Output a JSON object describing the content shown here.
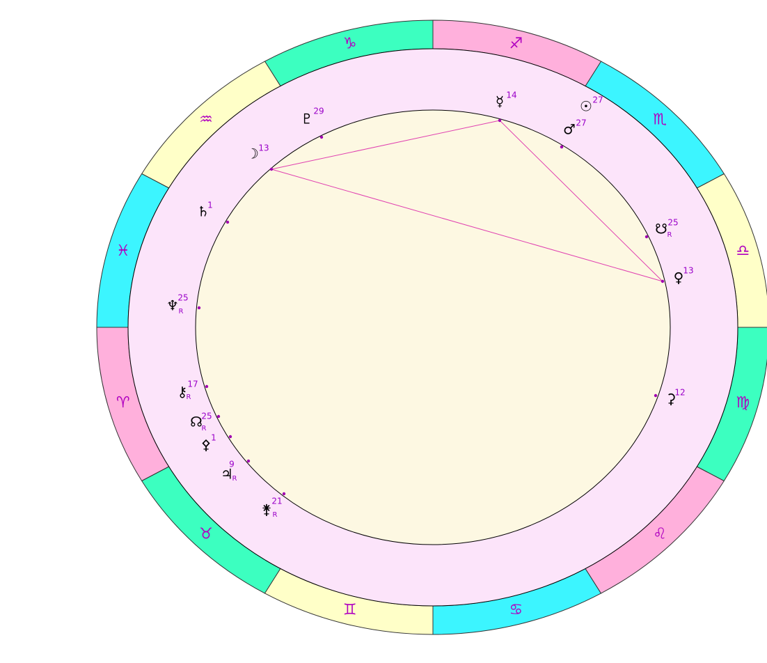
{
  "zodiac": [
    {
      "sign": "♎"
    },
    {
      "sign": "♏"
    },
    {
      "sign": "♐"
    },
    {
      "sign": "♑"
    },
    {
      "sign": "♒"
    },
    {
      "sign": "♓"
    },
    {
      "sign": "♈"
    },
    {
      "sign": "♉"
    },
    {
      "sign": "♊"
    },
    {
      "sign": "♋"
    },
    {
      "sign": "♌"
    },
    {
      "sign": "♍"
    }
  ],
  "planets": [
    {
      "glyph": "♇",
      "degree": 29
    },
    {
      "glyph": "☿",
      "degree": 14
    },
    {
      "glyph": "☉",
      "degree": 27
    },
    {
      "glyph": "♂",
      "degree": 27
    },
    {
      "glyph": "☽",
      "degree": 13
    },
    {
      "glyph": "♄",
      "degree": 1
    },
    {
      "glyph": "☋",
      "degree": 25,
      "retrograde": "R"
    },
    {
      "glyph": "♀",
      "degree": 13
    },
    {
      "glyph": "♆",
      "degree": 25,
      "retrograde": "R"
    },
    {
      "glyph": "⚳",
      "degree": 12
    },
    {
      "glyph": "⚷",
      "degree": 17,
      "retrograde": "R"
    },
    {
      "glyph": "☊",
      "degree": 25,
      "retrograde": "R"
    },
    {
      "glyph": "⚴",
      "degree": 1
    },
    {
      "glyph": "♃",
      "degree": 9,
      "retrograde": "R"
    },
    {
      "glyph": "⚵",
      "degree": 21,
      "retrograde": "R"
    }
  ]
}
